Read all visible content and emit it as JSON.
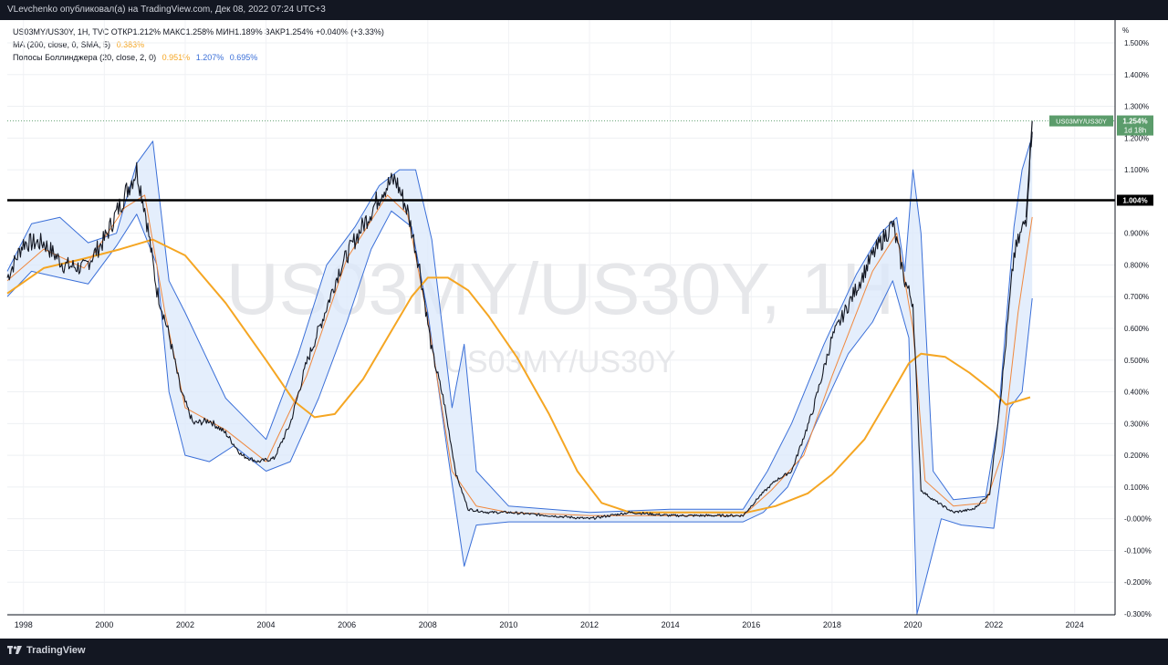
{
  "header": {
    "publisher_line": "VLevchenko опубликовал(а) на TradingView.com, Дек 08, 2022 07:24 UTC+3"
  },
  "legend": {
    "symbol_line": "US03MY/US30Y, 1H, TVC  ОТКР1.212%  МАКС1.258%  МИН1.189%  ЗАКР1.254%  +0.040% (+3.33%)",
    "ma_label": "MA (200, close, 0, SMA, 5)",
    "ma_value": "0.383%",
    "bb_label": "Полосы Боллинджера (20, close, 2, 0)",
    "bb_basis": "0.951%",
    "bb_upper": "1.207%",
    "bb_lower": "0.695%"
  },
  "watermark": {
    "main": "US03MY/US30Y, 1H",
    "sub": "US03MY/US30Y"
  },
  "price_tag": {
    "symbol": "US03MY/US30Y",
    "value": "1.254%",
    "countdown": "1d 18h"
  },
  "level_tag": {
    "value": "1.004%"
  },
  "footer": {
    "brand": "TradingView"
  },
  "colors": {
    "price": "#131722",
    "ma": "#f5a623",
    "bb_basis": "#f0883e",
    "bb_bands": "#3a6fd8",
    "bb_fill": "#dbe8fb",
    "price_tag_bg": "#5b9c6b",
    "level_line": "#000000"
  },
  "chart_data": {
    "type": "line",
    "y_unit": "%",
    "ylim": [
      -0.3,
      1.5
    ],
    "y_ticks": [
      "1.500%",
      "1.400%",
      "1.300%",
      "1.200%",
      "1.100%",
      "1.004%",
      "0.900%",
      "0.800%",
      "0.700%",
      "0.600%",
      "0.500%",
      "0.400%",
      "0.300%",
      "0.200%",
      "0.100%",
      "-0.000%",
      "-0.100%",
      "-0.200%",
      "-0.300%"
    ],
    "x_ticks": [
      "1998",
      "2000",
      "2002",
      "2004",
      "2006",
      "2008",
      "2010",
      "2012",
      "2014",
      "2016",
      "2018",
      "2020",
      "2022",
      "2024"
    ],
    "xlim": [
      1997.6,
      2025.0
    ],
    "horizontal_line": 1.004,
    "series": [
      {
        "name": "US03MY/US30Y",
        "x": [
          1997.6,
          1998.0,
          1998.5,
          1999.0,
          1999.5,
          2000.0,
          2000.5,
          2000.8,
          2001.0,
          2001.3,
          2001.6,
          2001.9,
          2002.2,
          2002.6,
          2003.0,
          2003.4,
          2003.8,
          2004.2,
          2004.6,
          2005.0,
          2005.4,
          2005.8,
          2006.2,
          2006.6,
          2006.9,
          2007.2,
          2007.5,
          2007.8,
          2008.1,
          2008.4,
          2008.7,
          2009.0,
          2009.5,
          2010.0,
          2011.0,
          2012.0,
          2013.0,
          2014.0,
          2015.0,
          2015.8,
          2016.2,
          2016.6,
          2017.0,
          2017.5,
          2018.0,
          2018.5,
          2019.0,
          2019.5,
          2019.8,
          2020.0,
          2020.2,
          2020.5,
          2021.0,
          2021.5,
          2021.9,
          2022.2,
          2022.5,
          2022.8,
          2022.95
        ],
        "values": [
          0.76,
          0.87,
          0.87,
          0.8,
          0.79,
          0.88,
          1.02,
          1.1,
          0.98,
          0.72,
          0.58,
          0.4,
          0.3,
          0.31,
          0.27,
          0.2,
          0.18,
          0.19,
          0.3,
          0.49,
          0.63,
          0.78,
          0.88,
          0.97,
          1.04,
          1.07,
          0.97,
          0.79,
          0.53,
          0.37,
          0.14,
          0.03,
          0.02,
          0.02,
          0.01,
          0.0,
          0.02,
          0.01,
          0.01,
          0.01,
          0.07,
          0.12,
          0.15,
          0.33,
          0.57,
          0.7,
          0.83,
          0.93,
          0.75,
          0.68,
          0.09,
          0.06,
          0.02,
          0.03,
          0.08,
          0.42,
          0.83,
          0.95,
          1.254
        ]
      },
      {
        "name": "MA (200, close, 0, SMA, 5)",
        "x": [
          1997.6,
          1998.5,
          1999.5,
          2000.4,
          2001.2,
          2002.0,
          2003.0,
          2004.0,
          2004.7,
          2005.2,
          2005.7,
          2006.4,
          2007.0,
          2007.6,
          2008.0,
          2008.5,
          2009.0,
          2009.5,
          2010.2,
          2011.0,
          2011.7,
          2012.3,
          2013.0,
          2015.0,
          2015.9,
          2016.6,
          2017.4,
          2018.0,
          2018.8,
          2019.4,
          2019.9,
          2020.2,
          2020.8,
          2021.4,
          2022.0,
          2022.3,
          2022.9
        ],
        "values": [
          0.71,
          0.79,
          0.82,
          0.85,
          0.88,
          0.83,
          0.68,
          0.5,
          0.37,
          0.32,
          0.33,
          0.44,
          0.57,
          0.7,
          0.76,
          0.76,
          0.72,
          0.64,
          0.51,
          0.33,
          0.15,
          0.05,
          0.02,
          0.02,
          0.02,
          0.04,
          0.08,
          0.14,
          0.25,
          0.38,
          0.49,
          0.52,
          0.51,
          0.46,
          0.4,
          0.36,
          0.383
        ]
      },
      {
        "name": "BB basis",
        "x": [
          1997.6,
          1998.5,
          1999.5,
          2000.5,
          2001.0,
          2001.5,
          2002.0,
          2003.0,
          2004.0,
          2005.0,
          2006.0,
          2007.0,
          2007.5,
          2008.0,
          2008.6,
          2009.2,
          2010.0,
          2012.0,
          2014.0,
          2015.8,
          2016.5,
          2017.3,
          2018.0,
          2019.0,
          2019.6,
          2020.0,
          2020.3,
          2021.0,
          2021.8,
          2022.2,
          2022.6,
          2022.95
        ],
        "values": [
          0.75,
          0.85,
          0.79,
          0.98,
          1.02,
          0.65,
          0.35,
          0.28,
          0.18,
          0.45,
          0.82,
          1.02,
          0.96,
          0.63,
          0.15,
          0.04,
          0.02,
          0.01,
          0.01,
          0.01,
          0.09,
          0.2,
          0.45,
          0.78,
          0.9,
          0.6,
          0.12,
          0.04,
          0.05,
          0.2,
          0.65,
          0.951
        ]
      },
      {
        "name": "BB upper",
        "x": [
          1997.6,
          1998.2,
          1998.9,
          1999.6,
          2000.3,
          2000.8,
          2001.2,
          2001.6,
          2002.0,
          2003.0,
          2004.0,
          2004.8,
          2005.5,
          2006.2,
          2006.8,
          2007.3,
          2007.7,
          2008.1,
          2008.6,
          2008.9,
          2009.2,
          2010.0,
          2012.0,
          2014.0,
          2015.8,
          2016.4,
          2017.0,
          2017.8,
          2018.6,
          2019.2,
          2019.6,
          2019.8,
          2020.0,
          2020.2,
          2020.5,
          2021.0,
          2021.8,
          2022.1,
          2022.5,
          2022.7,
          2022.95
        ],
        "values": [
          0.78,
          0.93,
          0.95,
          0.87,
          0.9,
          1.12,
          1.19,
          0.75,
          0.65,
          0.38,
          0.25,
          0.52,
          0.8,
          0.92,
          1.05,
          1.1,
          1.1,
          0.88,
          0.35,
          0.55,
          0.15,
          0.04,
          0.02,
          0.03,
          0.03,
          0.15,
          0.3,
          0.55,
          0.77,
          0.9,
          0.95,
          0.78,
          1.1,
          0.9,
          0.15,
          0.06,
          0.07,
          0.3,
          0.92,
          1.1,
          1.207
        ]
      },
      {
        "name": "BB lower",
        "x": [
          1997.6,
          1998.2,
          1998.9,
          1999.6,
          2000.3,
          2000.8,
          2001.3,
          2001.6,
          2002.0,
          2002.6,
          2003.2,
          2004.0,
          2004.6,
          2005.3,
          2006.0,
          2006.6,
          2007.1,
          2007.6,
          2008.0,
          2008.5,
          2008.9,
          2009.2,
          2010.0,
          2012.0,
          2014.0,
          2015.8,
          2016.3,
          2016.9,
          2017.6,
          2018.4,
          2019.0,
          2019.5,
          2019.9,
          2020.1,
          2020.3,
          2020.7,
          2021.2,
          2022.0,
          2022.4,
          2022.7,
          2022.95
        ],
        "values": [
          0.7,
          0.78,
          0.76,
          0.74,
          0.86,
          0.96,
          0.8,
          0.4,
          0.2,
          0.18,
          0.23,
          0.15,
          0.18,
          0.38,
          0.62,
          0.85,
          0.97,
          0.92,
          0.65,
          0.2,
          -0.15,
          -0.02,
          -0.01,
          -0.01,
          -0.01,
          -0.01,
          0.02,
          0.1,
          0.3,
          0.52,
          0.62,
          0.75,
          0.57,
          -0.3,
          -0.2,
          0.0,
          -0.02,
          -0.03,
          0.35,
          0.4,
          0.695
        ]
      }
    ]
  }
}
